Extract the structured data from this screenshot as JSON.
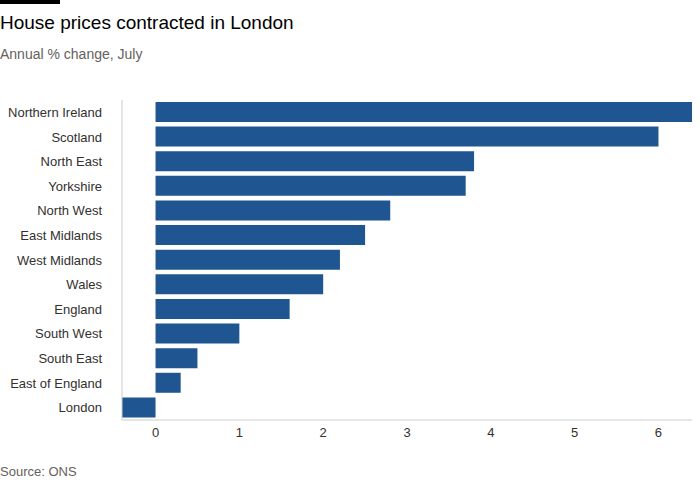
{
  "chart_data": {
    "type": "bar",
    "title": "House prices contracted in London",
    "subtitle": "Annual % change, July",
    "source": "Source: ONS",
    "orientation": "horizontal",
    "categories": [
      "Northern Ireland",
      "Scotland",
      "North East",
      "Yorkshire",
      "North West",
      "East Midlands",
      "West Midlands",
      "Wales",
      "England",
      "South West",
      "South East",
      "East of England",
      "London"
    ],
    "values": [
      6.4,
      6.0,
      3.8,
      3.7,
      2.8,
      2.5,
      2.2,
      2.0,
      1.6,
      1.0,
      0.5,
      0.3,
      -0.4
    ],
    "color": "#1f5591",
    "xlim": [
      -0.4,
      6.4
    ],
    "xticks": [
      0,
      1,
      2,
      3,
      4,
      5,
      6
    ],
    "grid": false
  }
}
